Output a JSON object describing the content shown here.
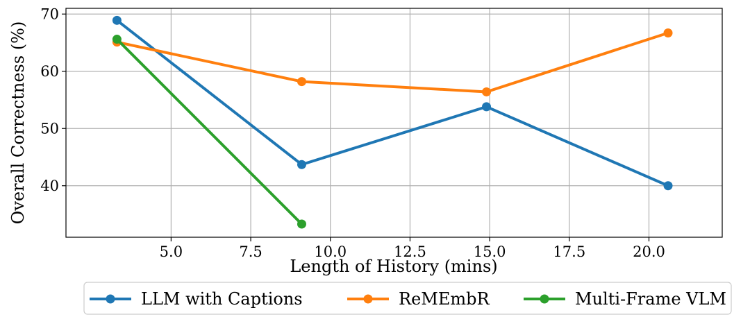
{
  "chart_data": {
    "type": "line",
    "title": "",
    "xlabel": "Length of History (mins)",
    "ylabel": "Overall Correctness (%)",
    "xlim": [
      1.7,
      22.3
    ],
    "ylim": [
      31.0,
      71.0
    ],
    "xticks": [
      5.0,
      7.5,
      10.0,
      12.5,
      15.0,
      17.5,
      20.0
    ],
    "xtick_labels": [
      "5.0",
      "7.5",
      "10.0",
      "12.5",
      "15.0",
      "17.5",
      "20.0"
    ],
    "yticks": [
      40,
      50,
      60,
      70
    ],
    "ytick_labels": [
      "40",
      "50",
      "60",
      "70"
    ],
    "grid": true,
    "legend_position": "bottom-center",
    "series": [
      {
        "name": "LLM with Captions",
        "color": "#1f77b4",
        "x": [
          3.3,
          9.1,
          14.9,
          20.6
        ],
        "y": [
          68.9,
          43.7,
          53.8,
          40.0
        ]
      },
      {
        "name": "ReMEmbR",
        "color": "#ff7f0e",
        "x": [
          3.3,
          9.1,
          14.9,
          20.6
        ],
        "y": [
          65.1,
          58.2,
          56.4,
          66.7
        ]
      },
      {
        "name": "Multi-Frame VLM",
        "color": "#2ca02c",
        "x": [
          3.3,
          9.1
        ],
        "y": [
          65.6,
          33.3
        ]
      }
    ]
  }
}
